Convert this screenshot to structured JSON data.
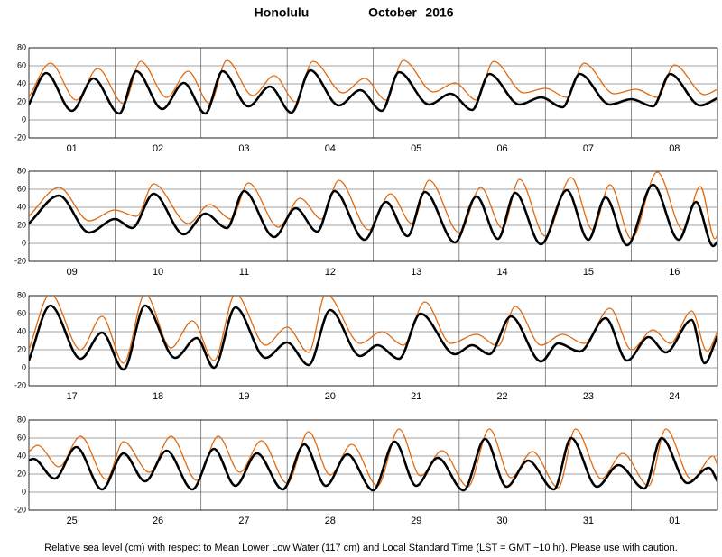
{
  "title": {
    "place": "Honolulu",
    "month": "October",
    "year": "2016"
  },
  "caption": "Relative sea level (cm) with respect to Mean Lower Low Water (117 cm) and Local Standard Time (LST = GMT −10 hr). Please use with caution.",
  "chart_data": [
    {
      "type": "line",
      "categories": [
        "01",
        "02",
        "03",
        "04",
        "05",
        "06",
        "07",
        "08"
      ],
      "xlim": [
        0,
        8
      ],
      "ylim": [
        -20,
        80
      ],
      "yticks": [
        -20,
        0,
        20,
        40,
        60,
        80
      ],
      "series": [
        {
          "color": "#e06a10",
          "x": [
            0,
            0.25,
            0.55,
            0.8,
            1.1,
            1.3,
            1.6,
            1.85,
            2.1,
            2.3,
            2.6,
            2.85,
            3.1,
            3.3,
            3.65,
            3.9,
            4.15,
            4.35,
            4.7,
            4.95,
            5.2,
            5.4,
            5.75,
            6.0,
            6.25,
            6.45,
            6.8,
            7.05,
            7.3,
            7.5,
            7.85,
            8
          ],
          "values": [
            25,
            63,
            22,
            57,
            18,
            65,
            25,
            54,
            18,
            66,
            27,
            49,
            20,
            65,
            30,
            46,
            22,
            66,
            31,
            41,
            22,
            65,
            30,
            35,
            25,
            63,
            29,
            34,
            25,
            61,
            28,
            34
          ]
        },
        {
          "color": "#000000",
          "x": [
            0,
            0.2,
            0.5,
            0.75,
            1.05,
            1.25,
            1.55,
            1.8,
            2.05,
            2.25,
            2.55,
            2.8,
            3.05,
            3.27,
            3.6,
            3.85,
            4.1,
            4.3,
            4.65,
            4.9,
            5.15,
            5.35,
            5.7,
            5.95,
            6.2,
            6.4,
            6.75,
            7.0,
            7.25,
            7.45,
            7.8,
            8
          ],
          "values": [
            17,
            52,
            10,
            46,
            7,
            54,
            12,
            41,
            7,
            54,
            15,
            37,
            8,
            55,
            16,
            33,
            10,
            53,
            17,
            29,
            11,
            51,
            17,
            25,
            14,
            51,
            17,
            23,
            15,
            51,
            16,
            24
          ]
        }
      ]
    },
    {
      "type": "line",
      "categories": [
        "09",
        "10",
        "11",
        "12",
        "13",
        "14",
        "15",
        "16"
      ],
      "xlim": [
        0,
        8
      ],
      "ylim": [
        -20,
        80
      ],
      "yticks": [
        -20,
        0,
        20,
        40,
        60,
        80
      ],
      "series": [
        {
          "color": "#e06a10",
          "x": [
            0,
            0.35,
            0.7,
            1.0,
            1.25,
            1.45,
            1.85,
            2.1,
            2.35,
            2.55,
            2.9,
            3.15,
            3.4,
            3.6,
            3.95,
            4.2,
            4.45,
            4.65,
            5.0,
            5.25,
            5.5,
            5.7,
            6.0,
            6.3,
            6.55,
            6.75,
            7.0,
            7.3,
            7.6,
            7.8,
            7.97,
            8
          ],
          "values": [
            30,
            62,
            25,
            37,
            30,
            66,
            22,
            43,
            27,
            67,
            18,
            50,
            27,
            70,
            15,
            55,
            22,
            70,
            12,
            62,
            17,
            71,
            8,
            73,
            15,
            65,
            5,
            79,
            15,
            63,
            5,
            9
          ]
        },
        {
          "color": "#000000",
          "x": [
            0,
            0.35,
            0.7,
            1.0,
            1.2,
            1.45,
            1.8,
            2.05,
            2.3,
            2.5,
            2.85,
            3.1,
            3.35,
            3.55,
            3.9,
            4.15,
            4.4,
            4.6,
            4.95,
            5.2,
            5.45,
            5.65,
            5.95,
            6.25,
            6.5,
            6.7,
            6.95,
            7.25,
            7.55,
            7.75,
            7.95,
            8
          ],
          "values": [
            22,
            53,
            12,
            27,
            17,
            55,
            10,
            33,
            17,
            58,
            7,
            39,
            13,
            58,
            4,
            46,
            8,
            57,
            1,
            52,
            5,
            56,
            -1,
            59,
            4,
            51,
            -2,
            65,
            4,
            46,
            -3,
            2
          ]
        }
      ]
    },
    {
      "type": "line",
      "categories": [
        "17",
        "18",
        "19",
        "20",
        "21",
        "22",
        "23",
        "24"
      ],
      "xlim": [
        0,
        8
      ],
      "ylim": [
        -20,
        80
      ],
      "yticks": [
        -20,
        0,
        20,
        40,
        60,
        80
      ],
      "series": [
        {
          "color": "#e06a10",
          "x": [
            0,
            0.25,
            0.6,
            0.85,
            1.1,
            1.35,
            1.65,
            1.9,
            2.15,
            2.4,
            2.75,
            3.0,
            3.25,
            3.45,
            3.85,
            4.1,
            4.35,
            4.6,
            4.9,
            5.2,
            5.45,
            5.65,
            5.95,
            6.2,
            6.45,
            6.75,
            7.0,
            7.25,
            7.45,
            7.7,
            7.88,
            8
          ],
          "values": [
            20,
            82,
            20,
            57,
            5,
            82,
            22,
            52,
            8,
            82,
            25,
            45,
            17,
            82,
            27,
            40,
            25,
            73,
            27,
            37,
            24,
            68,
            25,
            37,
            27,
            66,
            20,
            42,
            27,
            63,
            18,
            40
          ]
        },
        {
          "color": "#000000",
          "x": [
            0,
            0.25,
            0.6,
            0.85,
            1.1,
            1.35,
            1.7,
            1.95,
            2.15,
            2.4,
            2.75,
            3.0,
            3.25,
            3.5,
            3.85,
            4.05,
            4.3,
            4.55,
            4.95,
            5.15,
            5.35,
            5.6,
            5.95,
            6.15,
            6.4,
            6.7,
            6.95,
            7.2,
            7.4,
            7.7,
            7.85,
            8
          ],
          "values": [
            8,
            69,
            10,
            39,
            -2,
            69,
            11,
            33,
            0,
            67,
            11,
            28,
            3,
            64,
            13,
            25,
            10,
            60,
            15,
            25,
            15,
            57,
            7,
            27,
            18,
            55,
            8,
            34,
            17,
            53,
            5,
            35
          ]
        }
      ]
    },
    {
      "type": "line",
      "categories": [
        "25",
        "26",
        "27",
        "28",
        "29",
        "30",
        "31",
        "01"
      ],
      "xlim": [
        0,
        8
      ],
      "ylim": [
        -20,
        80
      ],
      "yticks": [
        -20,
        0,
        20,
        40,
        60,
        80
      ],
      "series": [
        {
          "color": "#e06a10",
          "x": [
            0,
            0.1,
            0.35,
            0.6,
            0.9,
            1.1,
            1.4,
            1.65,
            1.95,
            2.2,
            2.45,
            2.7,
            3.0,
            3.25,
            3.5,
            3.75,
            4.05,
            4.3,
            4.55,
            4.8,
            5.1,
            5.35,
            5.6,
            5.85,
            6.15,
            6.35,
            6.65,
            6.9,
            7.2,
            7.4,
            7.7,
            7.95,
            8
          ],
          "values": [
            45,
            52,
            28,
            62,
            14,
            56,
            22,
            62,
            13,
            62,
            22,
            57,
            10,
            67,
            19,
            53,
            7,
            70,
            18,
            46,
            6,
            70,
            16,
            45,
            5,
            70,
            15,
            43,
            7,
            70,
            14,
            40,
            30
          ]
        },
        {
          "color": "#000000",
          "x": [
            0,
            0.05,
            0.3,
            0.55,
            0.85,
            1.1,
            1.35,
            1.6,
            1.9,
            2.15,
            2.4,
            2.65,
            2.95,
            3.2,
            3.45,
            3.7,
            4.0,
            4.25,
            4.5,
            4.75,
            5.05,
            5.3,
            5.55,
            5.8,
            6.1,
            6.3,
            6.6,
            6.85,
            7.15,
            7.35,
            7.65,
            7.9,
            8
          ],
          "values": [
            35,
            37,
            15,
            50,
            3,
            43,
            12,
            46,
            3,
            48,
            7,
            43,
            3,
            53,
            7,
            42,
            2,
            56,
            7,
            38,
            2,
            59,
            6,
            35,
            3,
            60,
            6,
            30,
            4,
            60,
            10,
            27,
            12
          ]
        }
      ]
    }
  ]
}
